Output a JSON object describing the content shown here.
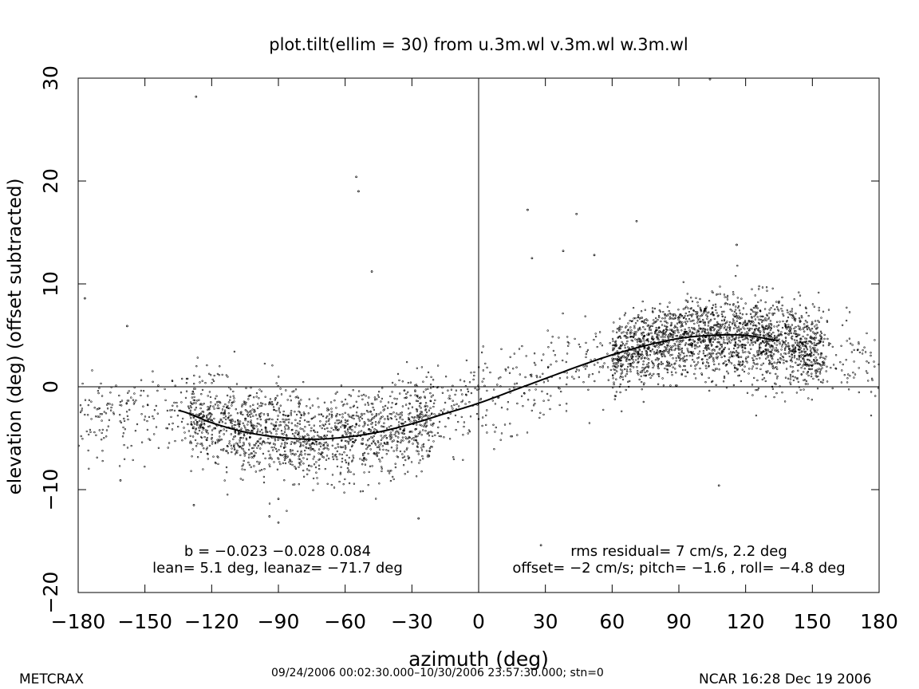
{
  "chart_data": {
    "type": "scatter",
    "title": "plot.tilt(ellim = 30) from u.3m.wl v.3m.wl w.3m.wl",
    "xlabel": "azimuth (deg)",
    "ylabel": "elevation (deg)   (offset subtracted)",
    "xlim": [
      -180,
      180
    ],
    "ylim": [
      -20,
      30
    ],
    "xticks": [
      -180,
      -150,
      -120,
      -90,
      -60,
      -30,
      0,
      30,
      60,
      90,
      120,
      150,
      180
    ],
    "yticks": [
      -20,
      -10,
      0,
      10,
      20,
      30
    ],
    "grid": false,
    "reference_lines": {
      "x": 0,
      "y": 0
    },
    "fit": {
      "name": "fit",
      "x": [
        -135,
        -120,
        -105,
        -90,
        -75,
        -60,
        -45,
        -30,
        -15,
        0,
        15,
        30,
        45,
        60,
        75,
        90,
        105,
        120,
        135
      ],
      "y": [
        -2.3,
        -3.5,
        -4.4,
        -4.9,
        -5.1,
        -4.9,
        -4.4,
        -3.6,
        -2.6,
        -1.6,
        -0.4,
        0.8,
        2.0,
        3.1,
        4.0,
        4.7,
        5.0,
        5.0,
        4.5
      ]
    },
    "outliers": {
      "x": [
        -127,
        -55,
        -54,
        -48,
        -177,
        -158,
        -161,
        22,
        24,
        44,
        38,
        52,
        104,
        -128,
        -94,
        -90,
        -90,
        -27,
        108,
        71,
        28,
        116
      ],
      "y": [
        28.2,
        20.4,
        19.0,
        11.2,
        8.6,
        5.9,
        -9.1,
        17.2,
        12.5,
        16.8,
        13.2,
        12.8,
        29.9,
        -11.5,
        -12.6,
        -13.2,
        -10.9,
        -12.8,
        -9.6,
        16.1,
        -15.4,
        13.8
      ]
    },
    "annotations": {
      "left_line1": "b = −0.023 −0.028  0.084",
      "left_line2": "lean= 5.1 deg, leanaz= −71.7 deg",
      "right_line1": "rms residual= 7 cm/s, 2.2 deg",
      "right_line2": "offset= −2 cm/s; pitch= −1.6 , roll= −4.8 deg"
    }
  },
  "footer": {
    "left": "METCRAX",
    "center": "09/24/2006 00:02:30.000–10/30/2006 23:57:30.000; stn=0",
    "right": "NCAR 16:28 Dec 19 2006"
  }
}
